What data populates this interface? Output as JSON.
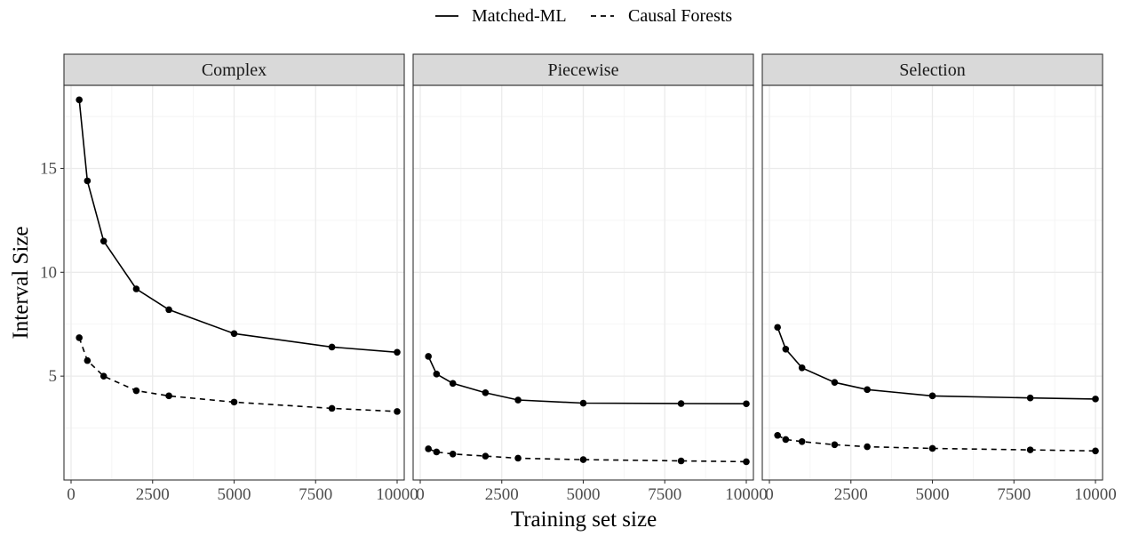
{
  "chart_data": {
    "type": "line",
    "xlabel": "Training set size",
    "ylabel": "Interval Size",
    "xlim": [
      0,
      10000
    ],
    "ylim": [
      0,
      19
    ],
    "x_ticks": [
      0,
      2500,
      5000,
      7500,
      10000
    ],
    "x_tick_labels": [
      "0",
      "2500",
      "5000",
      "7500",
      "10000"
    ],
    "y_ticks": [
      5,
      10,
      15
    ],
    "y_tick_labels": [
      "5",
      "10",
      "15"
    ],
    "grid": true,
    "legend": {
      "placement": "top",
      "entries": [
        {
          "label": "Matched-ML",
          "linestyle": "solid"
        },
        {
          "label": "Causal Forests",
          "linestyle": "dashed"
        }
      ]
    },
    "panels": [
      {
        "title": "Complex",
        "series": [
          {
            "name": "Matched-ML",
            "linestyle": "solid",
            "x": [
              250,
              500,
              1000,
              2000,
              3000,
              5000,
              8000,
              10000
            ],
            "y": [
              18.3,
              14.4,
              11.5,
              9.2,
              8.2,
              7.05,
              6.4,
              6.15
            ]
          },
          {
            "name": "Causal Forests",
            "linestyle": "dashed",
            "x": [
              250,
              500,
              1000,
              2000,
              3000,
              5000,
              8000,
              10000
            ],
            "y": [
              6.85,
              5.75,
              5.0,
              4.3,
              4.05,
              3.75,
              3.45,
              3.3
            ]
          }
        ]
      },
      {
        "title": "Piecewise",
        "series": [
          {
            "name": "Matched-ML",
            "linestyle": "solid",
            "x": [
              250,
              500,
              1000,
              2000,
              3000,
              5000,
              8000,
              10000
            ],
            "y": [
              5.95,
              5.1,
              4.65,
              4.2,
              3.85,
              3.7,
              3.68,
              3.67
            ]
          },
          {
            "name": "Causal Forests",
            "linestyle": "dashed",
            "x": [
              250,
              500,
              1000,
              2000,
              3000,
              5000,
              8000,
              10000
            ],
            "y": [
              1.5,
              1.35,
              1.25,
              1.15,
              1.05,
              0.98,
              0.92,
              0.88
            ]
          }
        ]
      },
      {
        "title": "Selection",
        "series": [
          {
            "name": "Matched-ML",
            "linestyle": "solid",
            "x": [
              250,
              500,
              1000,
              2000,
              3000,
              5000,
              8000,
              10000
            ],
            "y": [
              7.35,
              6.3,
              5.4,
              4.7,
              4.35,
              4.05,
              3.95,
              3.9
            ]
          },
          {
            "name": "Causal Forests",
            "linestyle": "dashed",
            "x": [
              250,
              500,
              1000,
              2000,
              3000,
              5000,
              8000,
              10000
            ],
            "y": [
              2.15,
              1.95,
              1.85,
              1.7,
              1.6,
              1.52,
              1.45,
              1.4
            ]
          }
        ]
      }
    ]
  }
}
